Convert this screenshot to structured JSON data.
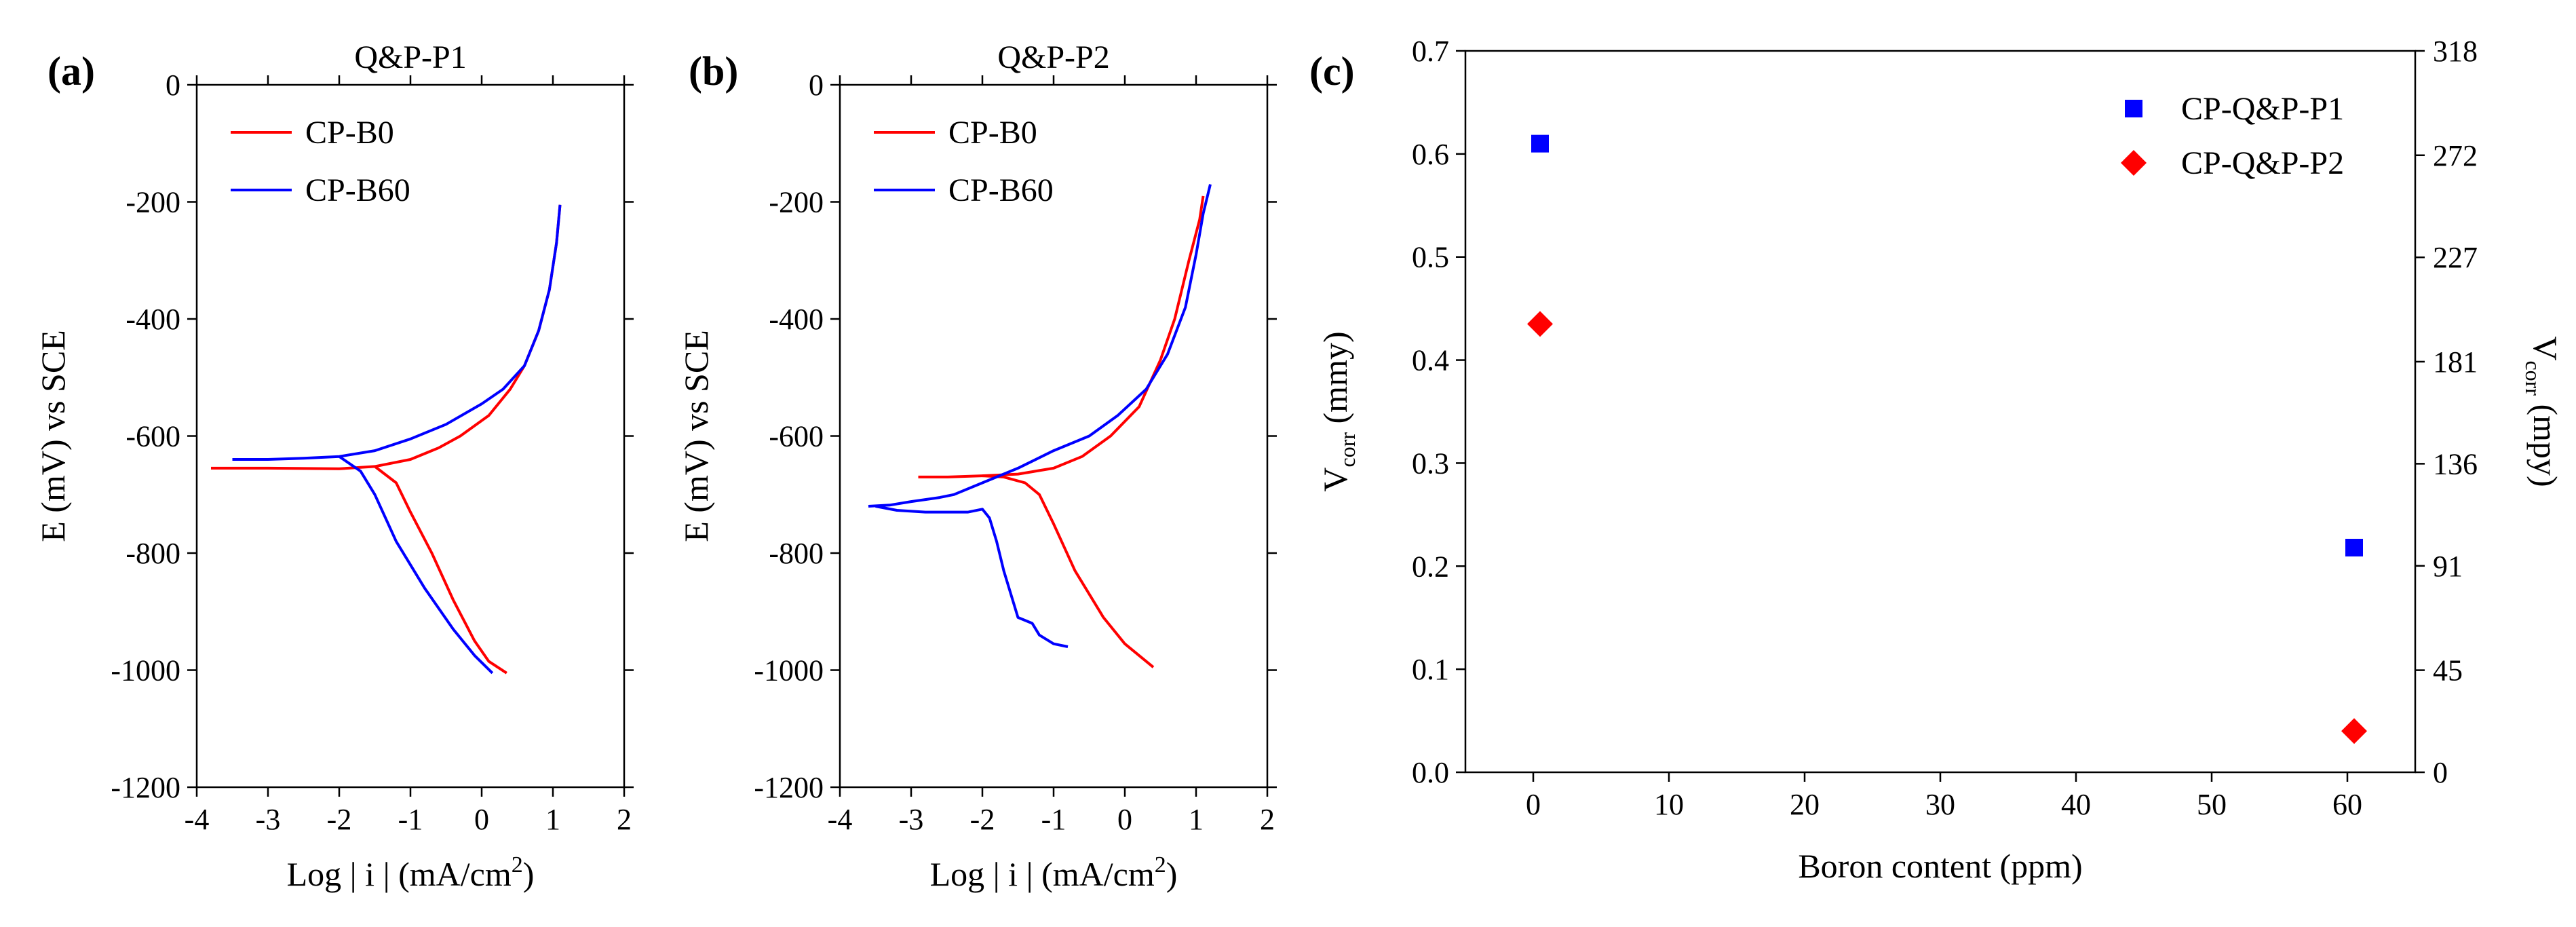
{
  "chart_data": [
    {
      "id": "a",
      "type": "line",
      "panel_label": "(a)",
      "title": "Q&P-P1",
      "xlabel": "Log | i | (mA/cm",
      "xlabel_sup": "2",
      "xlabel_tail": ")",
      "ylabel": "E (mV) vs SCE",
      "xlim": [
        -4,
        2
      ],
      "ylim": [
        -1200,
        0
      ],
      "xticks": [
        -4,
        -3,
        -2,
        -1,
        0,
        1,
        2
      ],
      "yticks": [
        0,
        -200,
        -400,
        -600,
        -800,
        -1000,
        -1200
      ],
      "legend_position": "top-left",
      "series": [
        {
          "name": "CP-B0",
          "color": "#ff0000",
          "segments": [
            [
              [
                -3.8,
                -655
              ],
              [
                -3,
                -655
              ],
              [
                -2,
                -656
              ],
              [
                -1.5,
                -652
              ],
              [
                -1.0,
                -640
              ],
              [
                -0.6,
                -620
              ],
              [
                -0.3,
                -600
              ],
              [
                0.1,
                -565
              ],
              [
                0.4,
                -520
              ],
              [
                0.6,
                -480
              ],
              [
                0.8,
                -420
              ],
              [
                0.95,
                -350
              ],
              [
                1.05,
                -270
              ],
              [
                1.1,
                -205
              ]
            ],
            [
              [
                -1.5,
                -652
              ],
              [
                -1.2,
                -680
              ],
              [
                -1.0,
                -730
              ],
              [
                -0.7,
                -800
              ],
              [
                -0.4,
                -880
              ],
              [
                -0.1,
                -950
              ],
              [
                0.1,
                -985
              ],
              [
                0.35,
                -1005
              ]
            ]
          ]
        },
        {
          "name": "CP-B60",
          "color": "#0000ff",
          "segments": [
            [
              [
                -3.5,
                -640
              ],
              [
                -3,
                -640
              ],
              [
                -2.5,
                -638
              ],
              [
                -2,
                -635
              ],
              [
                -1.5,
                -625
              ],
              [
                -1.0,
                -605
              ],
              [
                -0.5,
                -580
              ],
              [
                0,
                -545
              ],
              [
                0.3,
                -520
              ],
              [
                0.6,
                -480
              ],
              [
                0.8,
                -420
              ],
              [
                0.95,
                -350
              ],
              [
                1.05,
                -270
              ],
              [
                1.1,
                -205
              ]
            ],
            [
              [
                -2,
                -635
              ],
              [
                -1.7,
                -660
              ],
              [
                -1.5,
                -700
              ],
              [
                -1.2,
                -780
              ],
              [
                -0.8,
                -860
              ],
              [
                -0.4,
                -930
              ],
              [
                -0.1,
                -975
              ],
              [
                0.15,
                -1005
              ]
            ]
          ]
        }
      ]
    },
    {
      "id": "b",
      "type": "line",
      "panel_label": "(b)",
      "title": "Q&P-P2",
      "xlabel": "Log | i | (mA/cm",
      "xlabel_sup": "2",
      "xlabel_tail": ")",
      "ylabel": "E (mV) vs SCE",
      "xlim": [
        -4,
        2
      ],
      "ylim": [
        -1200,
        0
      ],
      "xticks": [
        -4,
        -3,
        -2,
        -1,
        0,
        1,
        2
      ],
      "yticks": [
        0,
        -200,
        -400,
        -600,
        -800,
        -1000,
        -1200
      ],
      "legend_position": "top-left",
      "series": [
        {
          "name": "CP-B0",
          "color": "#ff0000",
          "segments": [
            [
              [
                -2.9,
                -670
              ],
              [
                -2.5,
                -670
              ],
              [
                -2,
                -668
              ],
              [
                -1.5,
                -665
              ],
              [
                -1.0,
                -655
              ],
              [
                -0.6,
                -635
              ],
              [
                -0.2,
                -600
              ],
              [
                0.2,
                -550
              ],
              [
                0.5,
                -470
              ],
              [
                0.7,
                -400
              ],
              [
                0.9,
                -300
              ],
              [
                1.05,
                -230
              ],
              [
                1.1,
                -190
              ]
            ],
            [
              [
                -2,
                -668
              ],
              [
                -1.7,
                -670
              ],
              [
                -1.4,
                -680
              ],
              [
                -1.2,
                -700
              ],
              [
                -1.0,
                -750
              ],
              [
                -0.7,
                -830
              ],
              [
                -0.3,
                -910
              ],
              [
                0,
                -955
              ],
              [
                0.3,
                -985
              ],
              [
                0.4,
                -995
              ]
            ]
          ]
        },
        {
          "name": "CP-B60",
          "color": "#0000ff",
          "segments": [
            [
              [
                -3.6,
                -720
              ],
              [
                -3.3,
                -718
              ],
              [
                -3.0,
                -712
              ],
              [
                -2.6,
                -705
              ],
              [
                -2.4,
                -700
              ],
              [
                -2.0,
                -680
              ],
              [
                -1.5,
                -655
              ],
              [
                -1.0,
                -625
              ],
              [
                -0.5,
                -600
              ],
              [
                -0.1,
                -565
              ],
              [
                0.3,
                -520
              ],
              [
                0.6,
                -460
              ],
              [
                0.85,
                -380
              ],
              [
                1.0,
                -290
              ],
              [
                1.1,
                -220
              ],
              [
                1.2,
                -170
              ]
            ],
            [
              [
                -3.5,
                -720
              ],
              [
                -3.2,
                -727
              ],
              [
                -2.8,
                -730
              ],
              [
                -2.2,
                -730
              ],
              [
                -2.0,
                -725
              ],
              [
                -1.9,
                -740
              ],
              [
                -1.8,
                -780
              ],
              [
                -1.7,
                -830
              ],
              [
                -1.6,
                -870
              ],
              [
                -1.5,
                -910
              ],
              [
                -1.3,
                -920
              ],
              [
                -1.2,
                -940
              ],
              [
                -1.0,
                -955
              ],
              [
                -0.8,
                -960
              ]
            ]
          ]
        }
      ]
    },
    {
      "id": "c",
      "type": "scatter",
      "panel_label": "(c)",
      "title": "",
      "xlabel": "Boron content (ppm)",
      "ylabel_left": "V",
      "ylabel_left_sub": "corr",
      "ylabel_left_tail": " (mmy)",
      "ylabel_right": "V",
      "ylabel_right_sub": "corr",
      "ylabel_right_tail": " (mpy)",
      "xlim": [
        -5,
        65
      ],
      "ylim": [
        0,
        0.7
      ],
      "xticks": [
        0,
        10,
        20,
        30,
        40,
        50,
        60
      ],
      "yticks": [
        0.0,
        0.1,
        0.2,
        0.3,
        0.4,
        0.5,
        0.6,
        0.7
      ],
      "ytick_labels": [
        "0.0",
        "0.1",
        "0.2",
        "0.3",
        "0.4",
        "0.5",
        "0.6",
        "0.7"
      ],
      "right_yticks": [
        0,
        45,
        91,
        136,
        181,
        227,
        272,
        318
      ],
      "right_ylim": [
        0,
        318
      ],
      "legend_position": "top-right",
      "series": [
        {
          "name": "CP-Q&P-P1",
          "color": "#0000ff",
          "marker": "square",
          "x": [
            0.5,
            60.5
          ],
          "y": [
            0.61,
            0.218
          ]
        },
        {
          "name": "CP-Q&P-P2",
          "color": "#ff0000",
          "marker": "diamond",
          "x": [
            0.5,
            60.5
          ],
          "y": [
            0.435,
            0.04
          ]
        }
      ]
    }
  ]
}
